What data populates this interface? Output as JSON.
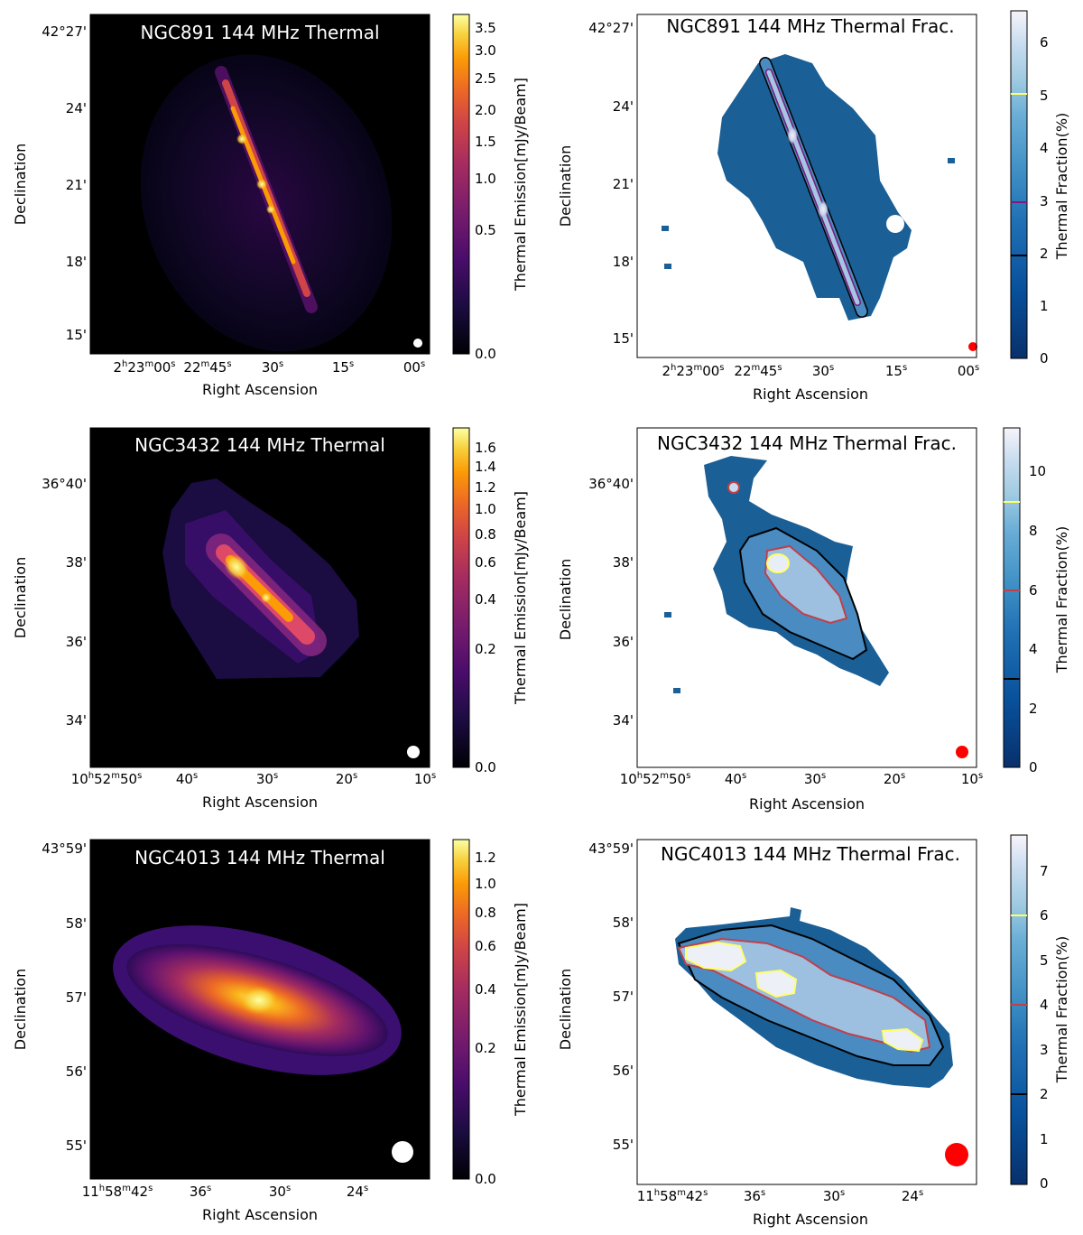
{
  "colors": {
    "beam_thermal": "#ffffff",
    "beam_fraction": "#ff0000",
    "contour_black": "#000000"
  },
  "chart_data": [
    {
      "type": "heatmap",
      "panel": "NGC891-thermal",
      "title": "NGC891 144 MHz Thermal",
      "xlabel": "Right Ascension",
      "ylabel": "Declination",
      "xticks": [
        [
          "2",
          "h",
          "23",
          "m",
          "00",
          "s"
        ],
        [
          "22",
          "m",
          "45",
          "s"
        ],
        [
          "30",
          "s"
        ],
        [
          "15",
          "s"
        ],
        [
          "00",
          "s"
        ]
      ],
      "yticks": [
        "42°27'",
        "24'",
        "21'",
        "18'",
        "15'"
      ],
      "colorbar": {
        "label": "Thermal Emission[mJy/Beam]",
        "colormap": "inferno",
        "scale": "asinh",
        "ticks": [
          "0.0",
          "0.5",
          "1.0",
          "1.5",
          "2.0",
          "2.5",
          "3.0",
          "3.5"
        ],
        "range": [
          0.0,
          3.7
        ]
      },
      "background": "#000000"
    },
    {
      "type": "heatmap",
      "panel": "NGC891-fraction",
      "title": "NGC891 144 MHz Thermal Frac.",
      "xlabel": "Right Ascension",
      "ylabel": "Declination",
      "xticks": [
        [
          "2",
          "h",
          "23",
          "m",
          "00",
          "s"
        ],
        [
          "22",
          "m",
          "45",
          "s"
        ],
        [
          "30",
          "s"
        ],
        [
          "15",
          "s"
        ],
        [
          "00",
          "s"
        ]
      ],
      "yticks": [
        "42°27'",
        "24'",
        "21'",
        "18'",
        "15'"
      ],
      "colorbar": {
        "label": "Thermal Fraction(%)",
        "colormap": "blues_r",
        "ticks": [
          "0",
          "1",
          "2",
          "3",
          "4",
          "5",
          "6"
        ],
        "range": [
          0,
          6.6
        ]
      },
      "contours": [
        {
          "level": 2,
          "color": "#000000"
        },
        {
          "level": 3,
          "color": "#7b1a78"
        },
        {
          "level": 5,
          "color": "#ffff66"
        }
      ],
      "background": "#ffffff"
    },
    {
      "type": "heatmap",
      "panel": "NGC3432-thermal",
      "title": "NGC3432 144 MHz Thermal",
      "xlabel": "Right Ascension",
      "ylabel": "Declination",
      "xticks": [
        [
          "10",
          "h",
          "52",
          "m",
          "50",
          "s"
        ],
        [
          "40",
          "s"
        ],
        [
          "30",
          "s"
        ],
        [
          "20",
          "s"
        ],
        [
          "10",
          "s"
        ]
      ],
      "yticks": [
        "36°40'",
        "38'",
        "36'",
        "34'"
      ],
      "colorbar": {
        "label": "Thermal Emission[mJy/Beam]",
        "colormap": "inferno",
        "scale": "asinh",
        "ticks": [
          "0.0",
          "0.2",
          "0.4",
          "0.6",
          "0.8",
          "1.0",
          "1.2",
          "1.4",
          "1.6"
        ],
        "range": [
          0.0,
          1.65
        ]
      },
      "background": "#000000"
    },
    {
      "type": "heatmap",
      "panel": "NGC3432-fraction",
      "title": "NGC3432 144 MHz Thermal Frac.",
      "xlabel": "Right Ascension",
      "ylabel": "Declination",
      "xticks": [
        [
          "10",
          "h",
          "52",
          "m",
          "50",
          "s"
        ],
        [
          "40",
          "s"
        ],
        [
          "30",
          "s"
        ],
        [
          "20",
          "s"
        ],
        [
          "10",
          "s"
        ]
      ],
      "yticks": [
        "36°40'",
        "38'",
        "36'",
        "34'"
      ],
      "colorbar": {
        "label": "Thermal Fraction(%)",
        "colormap": "blues_r",
        "ticks": [
          "0",
          "2",
          "4",
          "6",
          "8",
          "10"
        ],
        "range": [
          0,
          11.5
        ]
      },
      "contours": [
        {
          "level": 3,
          "color": "#000000"
        },
        {
          "level": 6,
          "color": "#c0404a"
        },
        {
          "level": 9,
          "color": "#ffff66"
        }
      ],
      "background": "#ffffff"
    },
    {
      "type": "heatmap",
      "panel": "NGC4013-thermal",
      "title": "NGC4013 144 MHz Thermal",
      "xlabel": "Right Ascension",
      "ylabel": "Declination",
      "xticks": [
        [
          "11",
          "h",
          "58",
          "m",
          "42",
          "s"
        ],
        [
          "36",
          "s"
        ],
        [
          "30",
          "s"
        ],
        [
          "24",
          "s"
        ]
      ],
      "yticks": [
        "43°59'",
        "58'",
        "57'",
        "56'",
        "55'"
      ],
      "colorbar": {
        "label": "Thermal Emission[mJy/Beam]",
        "colormap": "inferno",
        "scale": "asinh",
        "ticks": [
          "0.0",
          "0.2",
          "0.4",
          "0.6",
          "0.8",
          "1.0",
          "1.2"
        ],
        "range": [
          0.0,
          1.27
        ]
      },
      "background": "#000000"
    },
    {
      "type": "heatmap",
      "panel": "NGC4013-fraction",
      "title": "NGC4013 144 MHz Thermal Frac.",
      "xlabel": "Right Ascension",
      "ylabel": "Declination",
      "xticks": [
        [
          "11",
          "h",
          "58",
          "m",
          "42",
          "s"
        ],
        [
          "36",
          "s"
        ],
        [
          "30",
          "s"
        ],
        [
          "24",
          "s"
        ]
      ],
      "yticks": [
        "43°59'",
        "58'",
        "57'",
        "56'",
        "55'"
      ],
      "colorbar": {
        "label": "Thermal Fraction(%)",
        "colormap": "blues_r",
        "ticks": [
          "0",
          "1",
          "2",
          "3",
          "4",
          "5",
          "6",
          "7"
        ],
        "range": [
          0,
          7.8
        ]
      },
      "contours": [
        {
          "level": 2,
          "color": "#000000"
        },
        {
          "level": 4,
          "color": "#c0404a"
        },
        {
          "level": 6,
          "color": "#ffff66"
        }
      ],
      "background": "#ffffff"
    }
  ]
}
